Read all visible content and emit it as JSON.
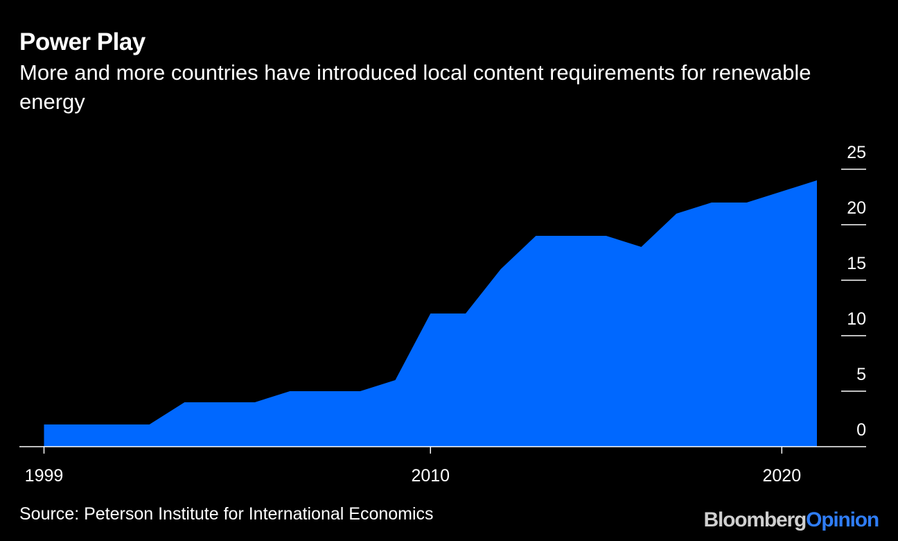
{
  "header": {
    "title": "Power Play",
    "subtitle": "More and more countries have introduced local content requirements for renewable energy"
  },
  "footer": {
    "source": "Source: Peterson Institute for International Economics",
    "brand_part1": "Bloomberg",
    "brand_part2": "Opinion"
  },
  "colors": {
    "background": "#000000",
    "area_fill": "#0068ff",
    "text": "#ffffff",
    "brand_opinion": "#2f7df6"
  },
  "chart_data": {
    "type": "area",
    "title": "Power Play",
    "subtitle": "More and more countries have introduced local content requirements for renewable energy",
    "x": [
      1999,
      2000,
      2001,
      2002,
      2003,
      2004,
      2005,
      2006,
      2007,
      2008,
      2009,
      2010,
      2011,
      2012,
      2013,
      2014,
      2015,
      2016,
      2017,
      2018,
      2019,
      2020,
      2021
    ],
    "series": [
      {
        "name": "",
        "values": [
          2,
          2,
          2,
          2,
          4,
          4,
          4,
          5,
          5,
          5,
          6,
          12,
          12,
          16,
          19,
          19,
          19,
          18,
          21,
          22,
          22,
          23,
          24
        ]
      }
    ],
    "xticks": [
      "1999",
      "2010",
      "2020"
    ],
    "yticks": [
      "0",
      "5",
      "10",
      "15",
      "20",
      "25"
    ],
    "xlim": [
      1998.3,
      2022.4
    ],
    "ylim": [
      0,
      25
    ],
    "xlabel": "",
    "ylabel": "",
    "y_axis_position": "right",
    "grid": false,
    "legend": "none",
    "source": "Source: Peterson Institute for International Economics"
  }
}
